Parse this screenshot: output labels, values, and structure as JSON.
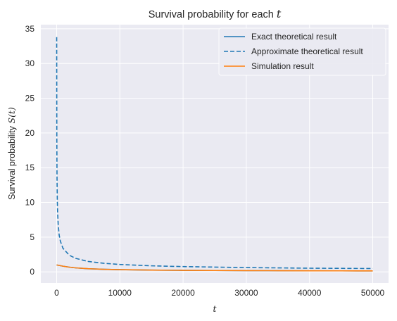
{
  "chart_data": {
    "type": "line",
    "title": "Survival probability for each",
    "title_var": "t",
    "xlabel": "t",
    "ylabel": "Survival probability",
    "ylabel_var": "S(t)",
    "xlim": [
      -2500,
      52500
    ],
    "ylim": [
      -1.6,
      35.6
    ],
    "xticks": [
      0,
      10000,
      20000,
      30000,
      40000,
      50000
    ],
    "xtick_labels": [
      "0",
      "10000",
      "20000",
      "30000",
      "40000",
      "50000"
    ],
    "yticks": [
      0,
      5,
      10,
      15,
      20,
      25,
      30,
      35
    ],
    "ytick_labels": [
      "0",
      "5",
      "10",
      "15",
      "20",
      "25",
      "30",
      "35"
    ],
    "grid": true,
    "legend_position": "top-right",
    "series": [
      {
        "name": "Exact theoretical result",
        "color": "#1f77b4",
        "style": "solid",
        "x": [
          0,
          1000,
          2000,
          3000,
          5000,
          7500,
          10000,
          15000,
          20000,
          25000,
          30000,
          35000,
          40000,
          45000,
          50000
        ],
        "y": [
          1.0,
          0.82,
          0.68,
          0.58,
          0.45,
          0.37,
          0.32,
          0.26,
          0.22,
          0.2,
          0.18,
          0.17,
          0.16,
          0.15,
          0.14
        ]
      },
      {
        "name": "Approximate theoretical result",
        "color": "#1f77b4",
        "style": "dashed",
        "x": [
          10,
          30,
          60,
          100,
          150,
          250,
          400,
          600,
          1000,
          2000,
          3000,
          5000,
          7500,
          10000,
          15000,
          20000,
          30000,
          40000,
          50000
        ],
        "y": [
          33.8,
          19.5,
          13.8,
          10.7,
          8.7,
          6.8,
          5.3,
          4.4,
          3.4,
          2.4,
          1.95,
          1.5,
          1.23,
          1.07,
          0.87,
          0.76,
          0.62,
          0.53,
          0.48
        ]
      },
      {
        "name": "Simulation result",
        "color": "#ff7f0e",
        "style": "solid",
        "x": [
          0,
          1000,
          2000,
          3000,
          5000,
          7500,
          10000,
          15000,
          20000,
          25000,
          30000,
          35000,
          40000,
          45000,
          50000
        ],
        "y": [
          1.0,
          0.82,
          0.68,
          0.58,
          0.46,
          0.37,
          0.32,
          0.26,
          0.22,
          0.2,
          0.18,
          0.17,
          0.16,
          0.15,
          0.14
        ]
      }
    ]
  }
}
